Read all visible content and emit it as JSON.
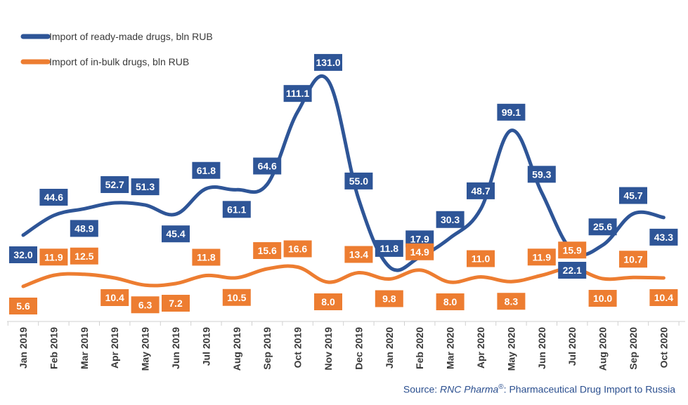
{
  "chart_data": {
    "type": "line",
    "x": [
      "Jan 2019",
      "Feb 2019",
      "Mar 2019",
      "Apr 2019",
      "May 2019",
      "Jun 2019",
      "Jul 2019",
      "Aug 2019",
      "Sep 2019",
      "Oct 2019",
      "Nov 2019",
      "Dec 2019",
      "Jan 2020",
      "Feb 2020",
      "Mar 2020",
      "Apr 2020",
      "May 2020",
      "Jun 2020",
      "Jul 2020",
      "Aug 2020",
      "Sep 2020",
      "Oct 2020"
    ],
    "series": [
      {
        "name": "Import of ready-made drugs, bln RUB",
        "color": "#2e5597",
        "values": [
          32.0,
          44.6,
          48.9,
          52.7,
          51.3,
          45.4,
          61.8,
          61.1,
          64.6,
          111.1,
          131.0,
          55.0,
          11.8,
          17.9,
          30.3,
          48.7,
          99.1,
          59.3,
          22.1,
          25.6,
          45.7,
          43.3
        ]
      },
      {
        "name": "Import of in-bulk drugs, bln RUB",
        "color": "#ed7d31",
        "values": [
          5.6,
          11.9,
          12.5,
          10.4,
          6.3,
          7.2,
          11.8,
          10.5,
          15.6,
          16.6,
          8.0,
          13.4,
          9.8,
          14.9,
          8.0,
          11.0,
          8.3,
          11.9,
          15.9,
          10.0,
          10.7,
          10.4
        ]
      }
    ],
    "data_labels_shown": true,
    "legend_position": "top-left",
    "y_axis_visible": false,
    "grid": false
  },
  "source": {
    "prefix": "Source: ",
    "brand": "RNC Pharma",
    "registered_mark": "®",
    "suffix": ": Pharmaceutical Drug Import to Russia"
  }
}
